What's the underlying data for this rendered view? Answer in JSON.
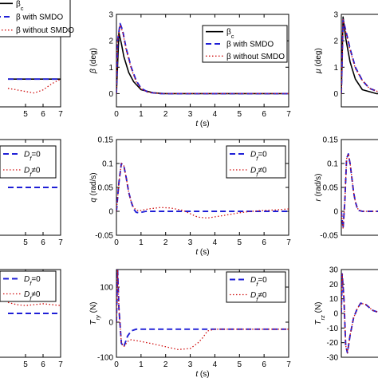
{
  "chart_data": [
    {
      "id": "p1",
      "type": "line",
      "xlim": [
        0,
        7
      ],
      "ylim": [
        0,
        3
      ],
      "xticks": [
        5,
        6,
        7
      ],
      "yticks": [],
      "xlabel": "",
      "ylabel": "",
      "legend": {
        "placement": "top-left",
        "entries": [
          "β_c",
          "β with SMDO",
          "β without SMDO"
        ]
      },
      "series": [
        {
          "style": "solid",
          "x": [
            4,
            5,
            6,
            7
          ],
          "y": [
            0.9,
            0.9,
            0.9,
            0.9
          ]
        },
        {
          "style": "dashed",
          "x": [
            4,
            5,
            6,
            7
          ],
          "y": [
            0.9,
            0.9,
            0.9,
            0.9
          ]
        },
        {
          "style": "dotted",
          "x": [
            4,
            4.5,
            5,
            5.5,
            6,
            6.5,
            7
          ],
          "y": [
            0.6,
            0.55,
            0.5,
            0.45,
            0.55,
            0.75,
            0.9
          ]
        }
      ]
    },
    {
      "id": "p2",
      "type": "line",
      "xlim": [
        0,
        7
      ],
      "ylim": [
        -0.5,
        3
      ],
      "xticks": [
        0,
        1,
        2,
        3,
        4,
        5,
        6,
        7
      ],
      "yticks": [
        0,
        1,
        2,
        3
      ],
      "xlabel": "t (s)",
      "ylabel": "β (deg)",
      "legend": {
        "placement": "top-right",
        "entries": [
          "β_c",
          "β with SMDO",
          "β without SMDO"
        ]
      },
      "series": [
        {
          "style": "solid",
          "x": [
            0,
            0.1,
            0.2,
            0.3,
            0.5,
            0.7,
            1.0,
            1.5,
            2,
            7
          ],
          "y": [
            0,
            2.3,
            1.9,
            1.4,
            0.8,
            0.45,
            0.15,
            0.03,
            0,
            0
          ]
        },
        {
          "style": "dashed",
          "x": [
            0,
            0.05,
            0.15,
            0.25,
            0.4,
            0.6,
            0.8,
            1.0,
            1.3,
            1.8,
            2.5,
            7
          ],
          "y": [
            0,
            2.0,
            2.65,
            2.4,
            1.7,
            1.0,
            0.5,
            0.2,
            0.05,
            0,
            0,
            0
          ]
        },
        {
          "style": "dotted",
          "x": [
            0,
            0.05,
            0.15,
            0.25,
            0.4,
            0.6,
            0.8,
            1.0,
            1.3,
            1.8,
            2.5,
            7
          ],
          "y": [
            0,
            2.0,
            2.6,
            2.35,
            1.65,
            0.95,
            0.45,
            0.18,
            0.05,
            0,
            0,
            0
          ]
        }
      ]
    },
    {
      "id": "p3",
      "type": "line",
      "xlim": [
        0,
        7
      ],
      "ylim": [
        -0.5,
        3
      ],
      "xticks": [],
      "yticks": [
        0,
        1,
        2,
        3
      ],
      "xlabel": "",
      "ylabel": "μ (deg)",
      "series": [
        {
          "style": "solid",
          "x": [
            0,
            0.1,
            0.25,
            0.5,
            0.8,
            1.2,
            2,
            7
          ],
          "y": [
            0,
            2.9,
            2.1,
            1.2,
            0.55,
            0.15,
            0,
            0
          ]
        },
        {
          "style": "dashed",
          "x": [
            0,
            0.1,
            0.25,
            0.5,
            0.8,
            1.2,
            1.6,
            2.2,
            7
          ],
          "y": [
            0,
            2.8,
            2.4,
            1.7,
            1.0,
            0.5,
            0.2,
            0.05,
            0
          ]
        },
        {
          "style": "dotted",
          "x": [
            0,
            0.1,
            0.25,
            0.5,
            0.8,
            1.2,
            1.6,
            2.2,
            7
          ],
          "y": [
            0,
            2.8,
            2.35,
            1.65,
            0.95,
            0.5,
            0.2,
            0.05,
            0
          ]
        }
      ]
    },
    {
      "id": "p4",
      "type": "line",
      "xlim": [
        0,
        7
      ],
      "ylim": [
        -1,
        1
      ],
      "xticks": [
        5,
        6,
        7
      ],
      "yticks": [],
      "xlabel": "",
      "ylabel": "",
      "legend": {
        "placement": "top-right",
        "entries": [
          "D_f=0",
          "D_f≠0"
        ]
      },
      "series": [
        {
          "style": "dashed",
          "x": [
            4,
            7
          ],
          "y": [
            0,
            0
          ]
        }
      ]
    },
    {
      "id": "p5",
      "type": "line",
      "xlim": [
        0,
        7
      ],
      "ylim": [
        -0.05,
        0.15
      ],
      "xticks": [
        0,
        1,
        2,
        3,
        4,
        5,
        6,
        7
      ],
      "yticks": [
        -0.05,
        0,
        0.05,
        0.1,
        0.15
      ],
      "xlabel": "t (s)",
      "ylabel": "q (rad/s)",
      "legend": {
        "placement": "top-right",
        "entries": [
          "D_f=0",
          "D_f≠0"
        ]
      },
      "series": [
        {
          "style": "dashed",
          "x": [
            0,
            0.1,
            0.2,
            0.3,
            0.4,
            0.5,
            0.6,
            0.7,
            0.8,
            0.9,
            1.0,
            1.2,
            1.5,
            7
          ],
          "y": [
            0,
            0.06,
            0.1,
            0.095,
            0.07,
            0.04,
            0.02,
            0.005,
            -0.002,
            -0.003,
            -0.002,
            0,
            0,
            0
          ]
        },
        {
          "style": "dotted",
          "x": [
            0,
            0.1,
            0.2,
            0.3,
            0.4,
            0.5,
            0.6,
            0.7,
            0.8,
            0.9,
            1.0,
            1.3,
            1.8,
            2.2,
            2.7,
            3.0,
            3.3,
            3.7,
            4.2,
            5.0,
            5.5,
            6.0,
            6.5,
            7.0
          ],
          "y": [
            0,
            0.06,
            0.1,
            0.095,
            0.07,
            0.04,
            0.02,
            0.008,
            0.003,
            0.001,
            0.002,
            0.005,
            0.008,
            0.007,
            0.002,
            -0.005,
            -0.012,
            -0.014,
            -0.01,
            -0.003,
            0.0,
            0.002,
            0.003,
            0.005
          ]
        }
      ]
    },
    {
      "id": "p6",
      "type": "line",
      "xlim": [
        0,
        7
      ],
      "ylim": [
        -0.05,
        0.15
      ],
      "xticks": [],
      "yticks": [
        -0.05,
        0,
        0.05,
        0.1,
        0.15
      ],
      "xlabel": "",
      "ylabel": "r (rad/s)",
      "series": [
        {
          "style": "dashed",
          "x": [
            0,
            0.1,
            0.2,
            0.3,
            0.4,
            0.5,
            0.6,
            0.7,
            0.8,
            0.9,
            1.0,
            1.2,
            1.5,
            7
          ],
          "y": [
            0,
            -0.035,
            0.02,
            0.11,
            0.12,
            0.1,
            0.07,
            0.04,
            0.02,
            0.008,
            0.002,
            0,
            0,
            0
          ]
        },
        {
          "style": "dotted",
          "x": [
            0,
            0.1,
            0.2,
            0.3,
            0.4,
            0.5,
            0.6,
            0.7,
            0.8,
            0.9,
            1.0,
            1.2,
            1.5,
            7
          ],
          "y": [
            0,
            -0.035,
            0.02,
            0.11,
            0.12,
            0.1,
            0.07,
            0.04,
            0.02,
            0.008,
            0.002,
            0,
            0,
            0
          ]
        }
      ]
    },
    {
      "id": "p7",
      "type": "line",
      "xlim": [
        0,
        7
      ],
      "ylim": [
        -1,
        1
      ],
      "xticks": [
        5,
        6,
        7
      ],
      "yticks": [],
      "xlabel": "",
      "ylabel": "",
      "legend": {
        "placement": "top-right",
        "entries": [
          "D_f=0",
          "D_f≠0"
        ]
      },
      "series": [
        {
          "style": "dashed",
          "x": [
            4,
            7
          ],
          "y": [
            0,
            0
          ]
        },
        {
          "style": "dotted",
          "x": [
            4,
            4.5,
            5,
            5.5,
            6,
            6.5,
            7
          ],
          "y": [
            0.25,
            0.2,
            0.18,
            0.2,
            0.22,
            0.2,
            0.18
          ]
        }
      ]
    },
    {
      "id": "p8",
      "type": "line",
      "xlim": [
        0,
        7
      ],
      "ylim": [
        -100,
        150
      ],
      "xticks": [
        0,
        1,
        2,
        3,
        4,
        5,
        6,
        7
      ],
      "yticks": [
        -100,
        0,
        100
      ],
      "xlabel": "t (s)",
      "ylabel": "T_ry (N)",
      "legend": {
        "placement": "top-right",
        "entries": [
          "D_f=0",
          "D_f≠0"
        ]
      },
      "series": [
        {
          "style": "dashed",
          "x": [
            0,
            0.05,
            0.1,
            0.2,
            0.3,
            0.45,
            0.6,
            0.8,
            1.0,
            2,
            3,
            4,
            5,
            6,
            7
          ],
          "y": [
            0,
            150,
            40,
            -60,
            -70,
            -40,
            -25,
            -20,
            -20,
            -20,
            -20,
            -20,
            -20,
            -20,
            -20
          ]
        },
        {
          "style": "dotted",
          "x": [
            0,
            0.05,
            0.1,
            0.2,
            0.3,
            0.45,
            0.6,
            1.0,
            1.5,
            2,
            2.5,
            3.0,
            3.3,
            3.5,
            3.7,
            4.0,
            5,
            6,
            7
          ],
          "y": [
            0,
            150,
            40,
            -60,
            -70,
            -55,
            -50,
            -55,
            -62,
            -70,
            -78,
            -75,
            -60,
            -45,
            -25,
            -20,
            -20,
            -20,
            -20
          ]
        }
      ]
    },
    {
      "id": "p9",
      "type": "line",
      "xlim": [
        0,
        7
      ],
      "ylim": [
        -30,
        30
      ],
      "xticks": [],
      "yticks": [
        -30,
        -20,
        -10,
        0,
        10,
        20,
        30
      ],
      "xlabel": "",
      "ylabel": "T_rz (N)",
      "series": [
        {
          "style": "dashed",
          "x": [
            0,
            0.05,
            0.15,
            0.25,
            0.35,
            0.5,
            0.7,
            0.9,
            1.1,
            1.4,
            1.8,
            2.3,
            3,
            5,
            7
          ],
          "y": [
            0,
            27,
            10,
            -22,
            -27,
            -15,
            -3,
            3,
            7,
            6,
            2,
            0,
            0,
            0,
            0
          ]
        },
        {
          "style": "dotted",
          "x": [
            0,
            0.05,
            0.15,
            0.25,
            0.35,
            0.5,
            0.7,
            0.9,
            1.1,
            1.4,
            1.8,
            2.3,
            3,
            5,
            7
          ],
          "y": [
            0,
            27,
            10,
            -22,
            -27,
            -15,
            -3,
            3,
            7,
            6,
            2,
            0,
            0,
            0,
            0
          ]
        }
      ]
    }
  ],
  "colors": {
    "solid": "#000000",
    "dashed": "#1f1fd6",
    "dotted": "#d01010",
    "axis": "#000000",
    "background": "#ffffff"
  }
}
